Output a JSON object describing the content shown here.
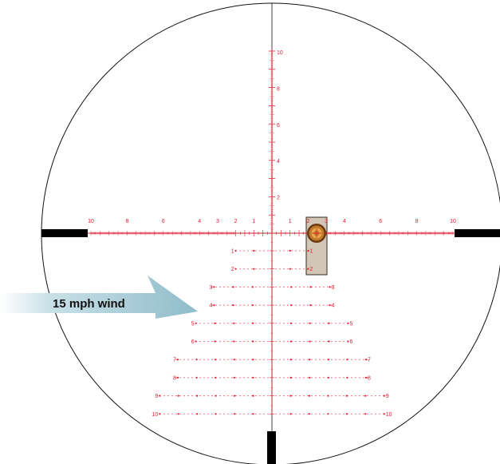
{
  "reticle": {
    "color": "#e8192c",
    "scope_line_color": "#111111",
    "center_mark": "+",
    "vertical_labels": [
      "10",
      "8",
      "6",
      "4",
      "2"
    ],
    "horizontal_left_labels": [
      "10",
      "8",
      "6",
      "4",
      "3",
      "2",
      "1"
    ],
    "horizontal_right_labels": [
      "1",
      "2",
      "3",
      "4",
      "6",
      "8",
      "10"
    ],
    "windage_rows": [
      {
        "label": "1",
        "dots": 5
      },
      {
        "label": "2",
        "dots": 5
      },
      {
        "label": "3",
        "dots": 7
      },
      {
        "label": "4",
        "dots": 7
      },
      {
        "label": "5",
        "dots": 9
      },
      {
        "label": "6",
        "dots": 9
      },
      {
        "label": "7",
        "dots": 11
      },
      {
        "label": "8",
        "dots": 11
      },
      {
        "label": "9",
        "dots": 13
      },
      {
        "label": "10",
        "dots": 13
      }
    ]
  },
  "target": {
    "box_color": "#d2c6b6",
    "ring_colors": [
      "#6b3a12",
      "#c07a2a",
      "#e7a94c"
    ]
  },
  "wind": {
    "label": "15 mph wind",
    "arrow_color": "#8fbcca"
  }
}
